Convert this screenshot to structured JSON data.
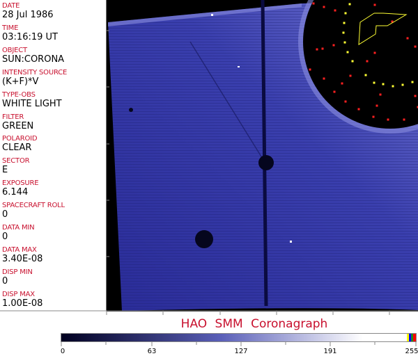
{
  "info_panel": {
    "fields": [
      {
        "label": "DATE",
        "value": "28 Jul 1986"
      },
      {
        "label": "TIME",
        "value": "03:16:19 UT"
      },
      {
        "label": "OBJECT",
        "value": "SUN:CORONA"
      },
      {
        "label": "INTENSITY SOURCE",
        "value": "(K+F)*V"
      },
      {
        "label": "TYPE-OBS",
        "value": "WHITE LIGHT"
      },
      {
        "label": "FILTER",
        "value": "GREEN"
      },
      {
        "label": "POLAROID",
        "value": "CLEAR"
      },
      {
        "label": "SECTOR",
        "value": "E"
      },
      {
        "label": "EXPOSURE",
        "value": "6.144"
      },
      {
        "label": "SPACECRAFT ROLL",
        "value": "0"
      },
      {
        "label": "DATA MIN",
        "value": "0"
      },
      {
        "label": "DATA MAX",
        "value": "3.40E-08"
      },
      {
        "label": "DISP MIN",
        "value": "0"
      },
      {
        "label": "DISP MAX",
        "value": "1.00E-08"
      }
    ]
  },
  "title": "HAO  SMM Coronagraph",
  "colorbar": {
    "ticks": [
      "0",
      "63",
      "127",
      "191",
      "255"
    ],
    "colors": {
      "low": "#000020",
      "mid": "#5a5fb8",
      "high": "#ffffff",
      "end_markers": [
        "#ffff00",
        "#0000ff",
        "#228b22",
        "#ff0000"
      ]
    }
  },
  "colors": {
    "label": "#c8102e",
    "field": "#2a2d9a",
    "occulter": "#000000",
    "overlay_yellow": "#ffff33",
    "overlay_red": "#ff2020"
  }
}
